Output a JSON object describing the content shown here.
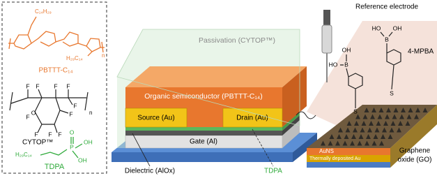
{
  "left_panel": {
    "pbttt": {
      "side_chain_top": "C₁₄H₂₉",
      "side_chain_bottom": "H₂₉C₁₄",
      "repeat": "n",
      "label": "PBTTT-C₁₄"
    },
    "cytop": {
      "fluorines": [
        "F",
        "F",
        "F",
        "F",
        "F",
        "F",
        "F",
        "F",
        "F",
        "F"
      ],
      "oxygen": "O",
      "repeat": "n",
      "label": "CYTOP™"
    },
    "tdpa": {
      "chain": "H₂₉C₁₄",
      "phosphorus": "P",
      "oxo": "O",
      "hydroxyls": [
        "OH",
        "OH"
      ],
      "label": "TDPA"
    }
  },
  "device": {
    "passivation": "Passivation (CYTOP™)",
    "semiconductor": "Organic semiconductor (PBTTT-C₁₄)",
    "source": "Source (Au)",
    "drain": "Drain (Au)",
    "gate": "Gate (Al)",
    "dielectric": "Dielectric (AlOx)",
    "tdpa": "TDPA"
  },
  "sensor": {
    "reference_electrode": "Reference electrode",
    "molecule": "4-MPBA",
    "molecules": [
      {
        "boron": "B",
        "hydroxyls": [
          "HO",
          "OH"
        ],
        "sulfur": "S"
      },
      {
        "boron": "B",
        "hydroxyls": [
          "HO",
          "OH"
        ],
        "sulfur": "S"
      }
    ],
    "auns": "AuNS",
    "au_layer": "Thermally deposited Au",
    "go_label": [
      "Graphene",
      "oxide (GO)"
    ]
  }
}
